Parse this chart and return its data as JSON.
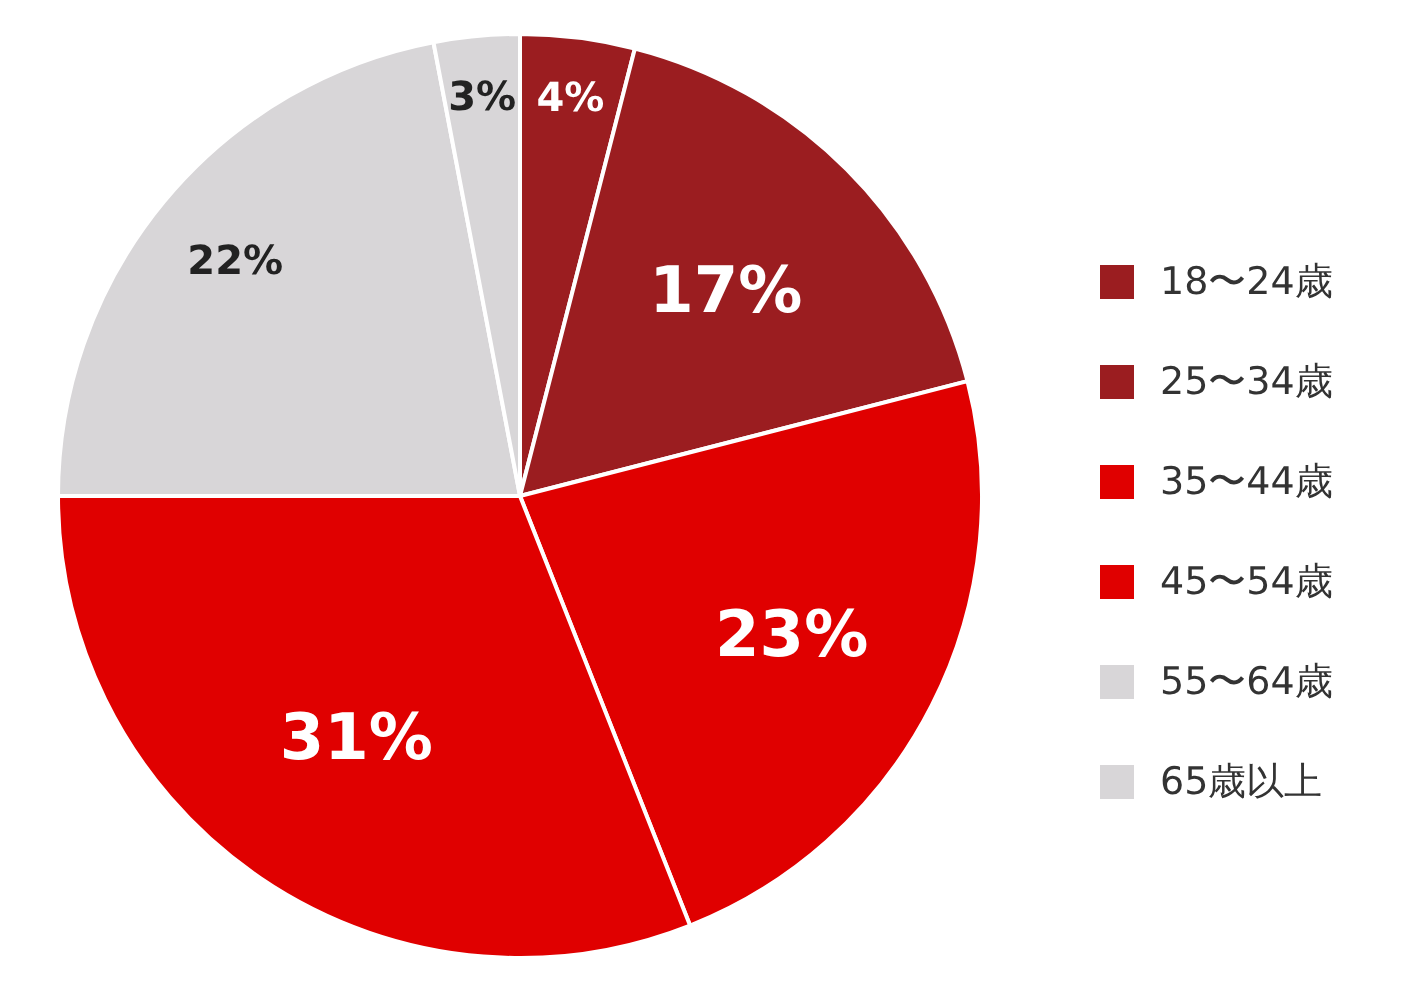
{
  "chart_data": {
    "type": "pie",
    "categories": [
      "18〜24歳",
      "25〜34歳",
      "35〜44歳",
      "45〜54歳",
      "55〜64歳",
      "65歳以上"
    ],
    "values": [
      4,
      17,
      23,
      31,
      22,
      3
    ],
    "colors": [
      "#9b1d20",
      "#9b1d20",
      "#e00000",
      "#e00000",
      "#d8d6d8",
      "#d8d6d8"
    ],
    "value_labels": [
      "4%",
      "17%",
      "23%",
      "31%",
      "22%",
      "3%"
    ],
    "legend": "right"
  }
}
